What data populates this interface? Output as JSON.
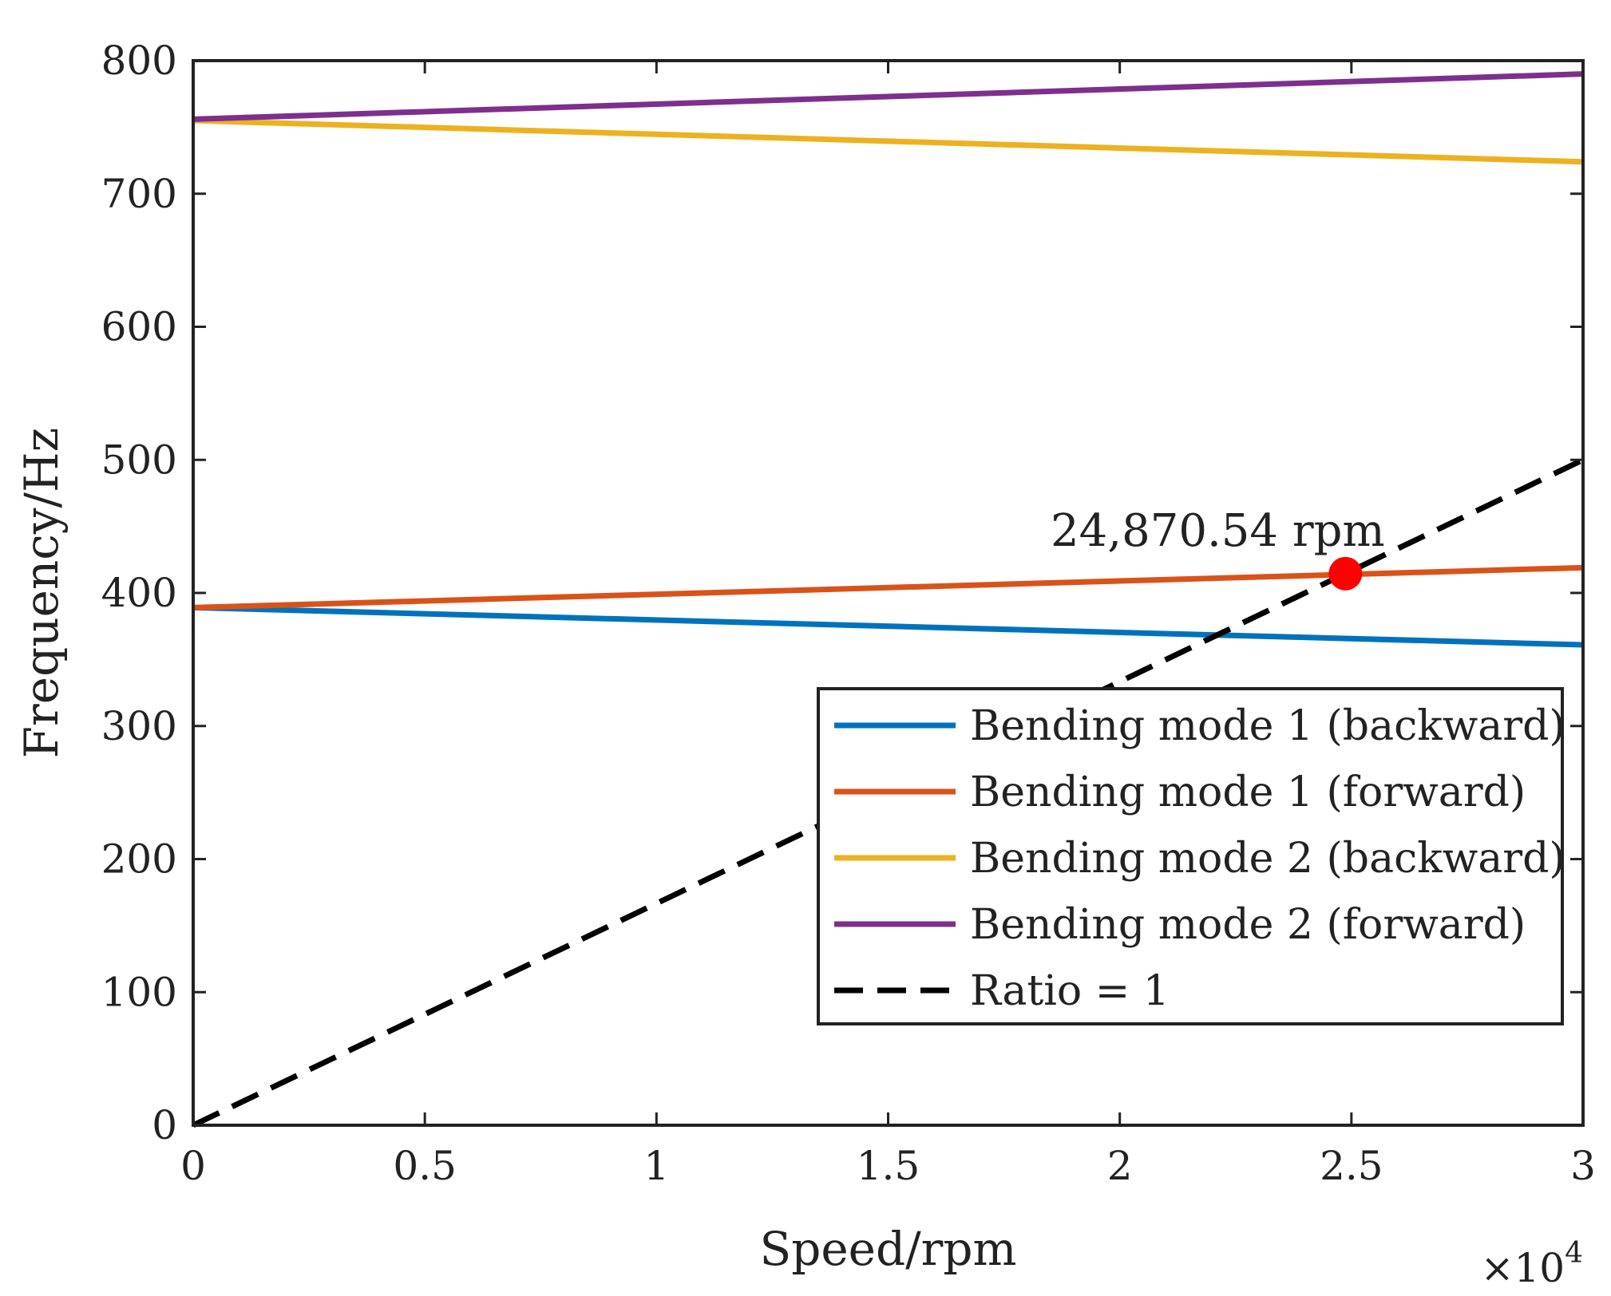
{
  "chart_data": {
    "type": "line",
    "xlabel": "Speed/rpm",
    "ylabel": "Frequency/Hz",
    "x_multiplier_label": "×10",
    "x_multiplier_exponent": "4",
    "xlim": [
      0,
      30000
    ],
    "ylim": [
      0,
      800
    ],
    "x_ticks": [
      0,
      5000,
      10000,
      15000,
      20000,
      25000,
      30000
    ],
    "x_tick_labels": [
      "0",
      "0.5",
      "1",
      "1.5",
      "2",
      "2.5",
      "3"
    ],
    "y_ticks": [
      0,
      100,
      200,
      300,
      400,
      500,
      600,
      700,
      800
    ],
    "y_tick_labels": [
      "0",
      "100",
      "200",
      "300",
      "400",
      "500",
      "600",
      "700",
      "800"
    ],
    "grid": false,
    "legend_position": "bottom-right",
    "series": [
      {
        "name": "Bending mode 1 (backward)",
        "color": "#0072BD",
        "style": "solid",
        "x": [
          0,
          30000
        ],
        "y": [
          389,
          361
        ]
      },
      {
        "name": "Bending mode 1 (forward)",
        "color": "#D95319",
        "style": "solid",
        "x": [
          0,
          30000
        ],
        "y": [
          389,
          419
        ]
      },
      {
        "name": "Bending mode 2 (backward)",
        "color": "#EDB120",
        "style": "solid",
        "x": [
          0,
          30000
        ],
        "y": [
          755,
          724
        ]
      },
      {
        "name": "Bending mode 2 (forward)",
        "color": "#7E2F8E",
        "style": "solid",
        "x": [
          0,
          30000
        ],
        "y": [
          756,
          790
        ]
      },
      {
        "name": "Ratio = 1",
        "color": "#000000",
        "style": "dashed",
        "x": [
          0,
          30000
        ],
        "y": [
          0,
          500
        ]
      }
    ],
    "annotations": [
      {
        "text": "24,870.54 rpm",
        "x": 24870.54,
        "y": 414.5,
        "marker_color": "#FF0000"
      }
    ]
  }
}
